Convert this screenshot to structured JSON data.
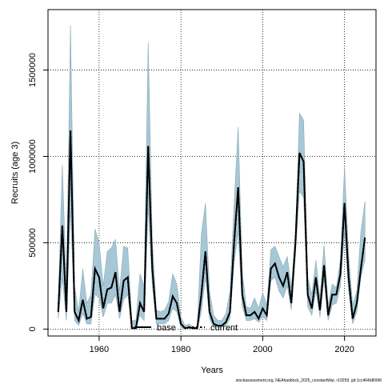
{
  "chart_data": {
    "type": "line",
    "xlabel": "Years",
    "ylabel": "Recruits (age 3)",
    "xlim": [
      1947.5,
      2027.7
    ],
    "ylim": [
      -40000,
      1850000
    ],
    "x_ticks": [
      1960,
      1980,
      2000,
      2020
    ],
    "x_tick_labels": [
      "1960",
      "1980",
      "2000",
      "2020"
    ],
    "y_ticks": [
      0,
      500000,
      1000000,
      1500000
    ],
    "y_tick_labels": [
      "0",
      "500000",
      "1000000",
      "1500000"
    ],
    "grid": true,
    "legend": {
      "placement": "bottom-center",
      "entries": [
        {
          "label": "base",
          "style": "solid"
        },
        {
          "label": "current",
          "style": "dashed"
        }
      ]
    },
    "band_color": "#a6c7d6",
    "line_color": "#000000",
    "x": [
      1950,
      1951,
      1952,
      1953,
      1954,
      1955,
      1956,
      1957,
      1958,
      1959,
      1960,
      1961,
      1962,
      1963,
      1964,
      1965,
      1966,
      1967,
      1968,
      1969,
      1970,
      1971,
      1972,
      1973,
      1974,
      1975,
      1976,
      1977,
      1978,
      1979,
      1980,
      1981,
      1982,
      1983,
      1984,
      1985,
      1986,
      1987,
      1988,
      1989,
      1990,
      1991,
      1992,
      1993,
      1994,
      1995,
      1996,
      1997,
      1998,
      1999,
      2000,
      2001,
      2002,
      2003,
      2004,
      2005,
      2006,
      2007,
      2008,
      2009,
      2010,
      2011,
      2012,
      2013,
      2014,
      2015,
      2016,
      2017,
      2018,
      2019,
      2020,
      2021,
      2022,
      2023,
      2024,
      2025
    ],
    "series": [
      {
        "name": "base",
        "style": "solid",
        "values": [
          100000,
          600000,
          100000,
          1150000,
          100000,
          50000,
          170000,
          60000,
          70000,
          350000,
          300000,
          120000,
          230000,
          240000,
          330000,
          100000,
          280000,
          300000,
          5000,
          5000,
          150000,
          100000,
          1060000,
          350000,
          60000,
          60000,
          60000,
          90000,
          190000,
          150000,
          30000,
          5000,
          10000,
          5000,
          5000,
          200000,
          450000,
          100000,
          30000,
          20000,
          20000,
          40000,
          100000,
          500000,
          820000,
          200000,
          80000,
          80000,
          100000,
          60000,
          120000,
          80000,
          350000,
          380000,
          300000,
          250000,
          330000,
          150000,
          500000,
          1020000,
          970000,
          200000,
          120000,
          300000,
          110000,
          370000,
          80000,
          200000,
          200000,
          320000,
          730000,
          300000,
          60000,
          150000,
          350000,
          530000
        ]
      },
      {
        "name": "current",
        "style": "dashed",
        "values": [
          100000,
          600000,
          100000,
          1150000,
          100000,
          50000,
          170000,
          60000,
          70000,
          350000,
          300000,
          120000,
          230000,
          240000,
          330000,
          100000,
          280000,
          300000,
          5000,
          5000,
          150000,
          100000,
          1060000,
          350000,
          60000,
          60000,
          60000,
          90000,
          190000,
          150000,
          30000,
          5000,
          10000,
          5000,
          5000,
          200000,
          450000,
          100000,
          30000,
          20000,
          20000,
          40000,
          100000,
          500000,
          820000,
          200000,
          80000,
          80000,
          100000,
          60000,
          120000,
          80000,
          350000,
          380000,
          300000,
          250000,
          330000,
          150000,
          500000,
          1020000,
          970000,
          200000,
          120000,
          300000,
          110000,
          370000,
          80000,
          200000,
          200000,
          320000,
          730000,
          300000,
          60000,
          150000,
          350000,
          530000
        ]
      }
    ],
    "band_upper": [
      150000,
      950000,
      250000,
      1760000,
      250000,
      100000,
      350000,
      150000,
      200000,
      580000,
      500000,
      250000,
      450000,
      470000,
      520000,
      220000,
      480000,
      470000,
      50000,
      50000,
      320000,
      250000,
      1660000,
      520000,
      110000,
      100000,
      110000,
      160000,
      320000,
      260000,
      70000,
      20000,
      30000,
      10000,
      15000,
      550000,
      730000,
      220000,
      80000,
      50000,
      50000,
      90000,
      220000,
      720000,
      1170000,
      330000,
      130000,
      120000,
      180000,
      120000,
      210000,
      140000,
      460000,
      480000,
      420000,
      360000,
      420000,
      240000,
      560000,
      1250000,
      1210000,
      300000,
      200000,
      400000,
      180000,
      490000,
      140000,
      260000,
      240000,
      400000,
      940000,
      430000,
      140000,
      220000,
      560000,
      740000
    ],
    "band_lower": [
      60000,
      300000,
      50000,
      700000,
      50000,
      20000,
      90000,
      30000,
      30000,
      200000,
      180000,
      70000,
      150000,
      150000,
      200000,
      60000,
      170000,
      200000,
      1000,
      1000,
      80000,
      50000,
      700000,
      250000,
      30000,
      30000,
      30000,
      50000,
      120000,
      100000,
      10000,
      1000,
      5000,
      1000,
      1000,
      100000,
      300000,
      60000,
      10000,
      10000,
      10000,
      20000,
      60000,
      380000,
      560000,
      130000,
      50000,
      50000,
      60000,
      40000,
      70000,
      50000,
      280000,
      300000,
      220000,
      180000,
      250000,
      110000,
      430000,
      800000,
      760000,
      130000,
      80000,
      220000,
      70000,
      290000,
      50000,
      140000,
      150000,
      250000,
      560000,
      220000,
      30000,
      100000,
      300000,
      400000
    ]
  },
  "footer": "stockassessment.org, NEAhaddock_2025_constantWar, r19259, git:1cc464b806f6"
}
